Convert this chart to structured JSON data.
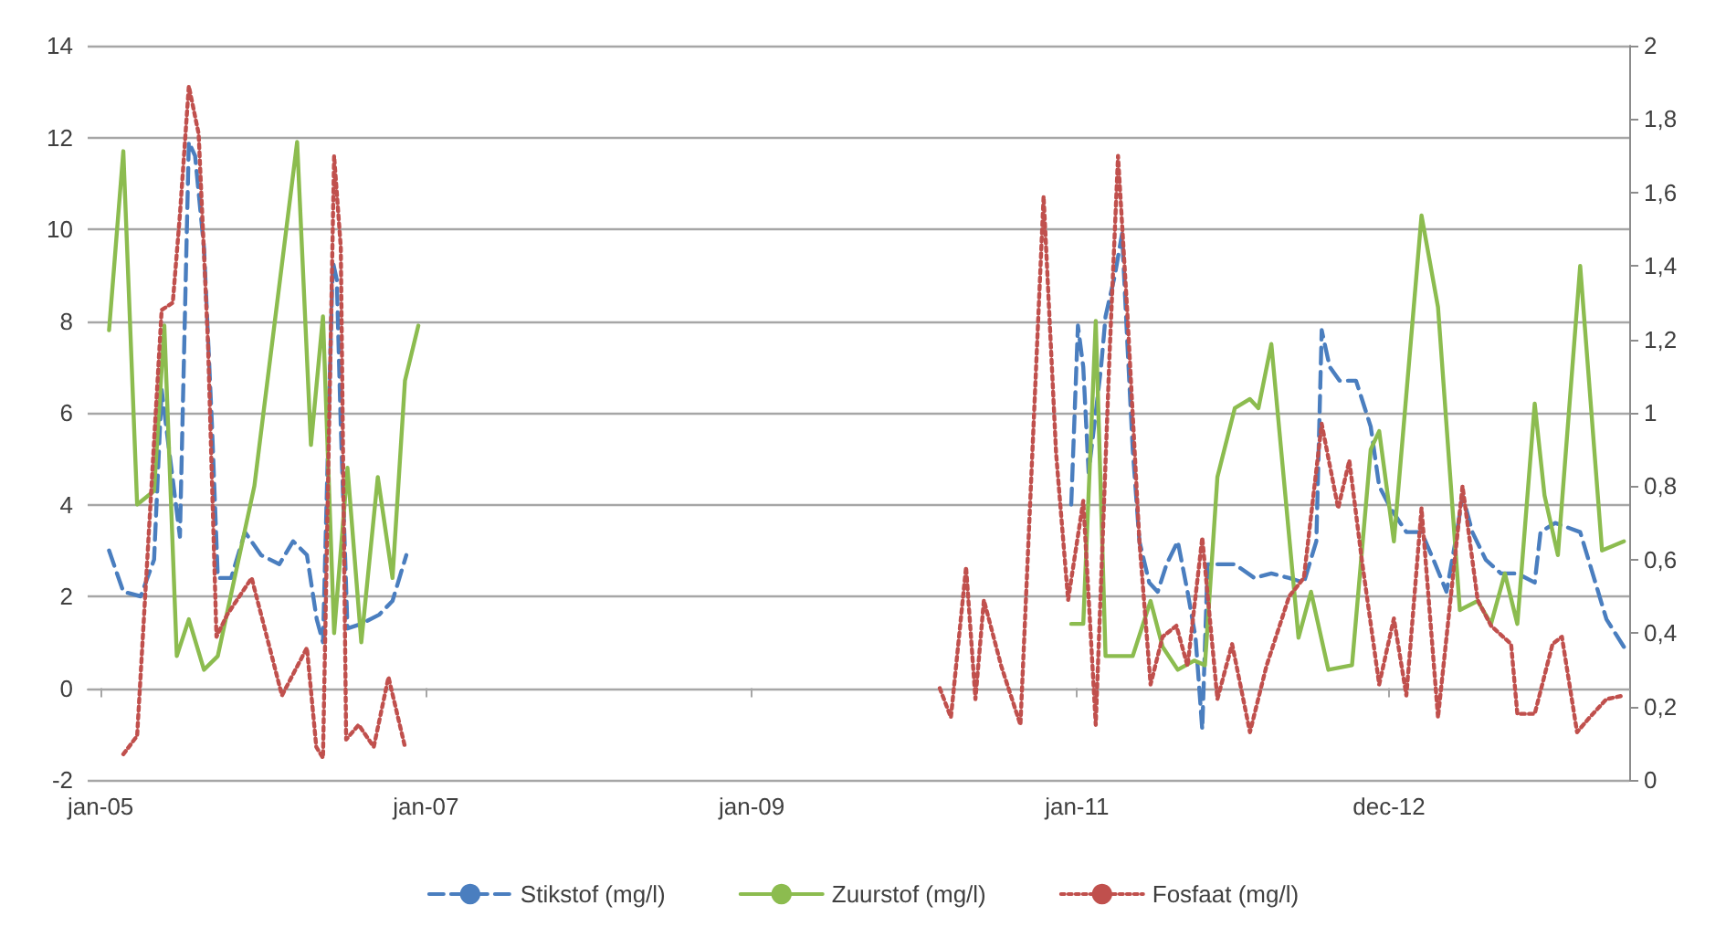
{
  "chart_data": {
    "type": "line",
    "ylim": [
      -2,
      14
    ],
    "yticks": [
      -2,
      0,
      2,
      4,
      6,
      8,
      10,
      12,
      14
    ],
    "y2lim": [
      0,
      2
    ],
    "y2ticks": [
      0,
      {
        "value": 0.2,
        "label": "0,2"
      },
      {
        "value": 0.4,
        "label": "0,4"
      },
      {
        "value": 0.6,
        "label": "0,6"
      },
      {
        "value": 0.8,
        "label": "0,8"
      },
      1,
      {
        "value": 1.2,
        "label": "1,2"
      },
      {
        "value": 1.4,
        "label": "1,4"
      },
      {
        "value": 1.6,
        "label": "1,6"
      },
      {
        "value": 1.8,
        "label": "1,8"
      },
      2
    ],
    "xlim": [
      "2004-12-03",
      "2014-05-24"
    ],
    "xticks": [
      {
        "value": "2005-01-01",
        "label": "jan-05"
      },
      {
        "value": "2007-01-01",
        "label": "jan-07"
      },
      {
        "value": "2009-01-01",
        "label": "jan-09"
      },
      {
        "value": "2011-01-01",
        "label": "jan-11"
      },
      {
        "value": "2012-12-01",
        "label": "dec-12"
      }
    ],
    "grid": "y",
    "legend": "bottom",
    "marker": "none",
    "series": [
      {
        "name": "Stikstof (mg/l)",
        "color": "#4a7ebf",
        "line_style": "dashed",
        "x": [
          "2005-01-20",
          "2005-02-21",
          "2005-04-01",
          "2005-05-01",
          "2005-05-18",
          "2005-06-01",
          "2005-06-28",
          "2005-07-18",
          "2005-08-01",
          "2005-08-21",
          "2005-09-08",
          "2005-09-21",
          "2005-10-21",
          "2005-11-21",
          "2005-12-27",
          "2006-02-06",
          "2006-03-09",
          "2006-04-09",
          "2006-05-01",
          "2006-05-15",
          "2006-06-06",
          "2006-06-15",
          "2006-06-24",
          "2006-07-09",
          "2006-08-09",
          "2006-09-18",
          "2006-10-18",
          "2006-11-18",
          "2008-06-01",
          "2010-12-19",
          "2011-01-03",
          "2011-01-15",
          "2011-01-27",
          "2011-02-12",
          "2011-02-24",
          "2011-03-06",
          "2011-03-27",
          "2011-04-12",
          "2011-04-24",
          "2011-05-06",
          "2011-05-21",
          "2011-06-12",
          "2011-07-01",
          "2011-07-21",
          "2011-08-15",
          "2011-09-06",
          "2011-09-24",
          "2011-10-09",
          "2011-10-21",
          "2011-11-24",
          "2011-12-21",
          "2012-02-03",
          "2012-03-12",
          "2012-04-21",
          "2012-05-24",
          "2012-06-21",
          "2012-07-03",
          "2012-07-21",
          "2012-08-12",
          "2012-09-18",
          "2012-10-21",
          "2012-11-09",
          "2012-12-06",
          "2013-01-09",
          "2013-02-12",
          "2013-03-15",
          "2013-04-09",
          "2013-05-01",
          "2013-05-15",
          "2013-06-06",
          "2013-07-06",
          "2013-08-09",
          "2013-09-15",
          "2013-10-24",
          "2013-11-06",
          "2013-12-09",
          "2014-02-03",
          "2014-03-06",
          "2014-04-03",
          "2014-05-12"
        ],
        "values": [
          3.0,
          2.1,
          2.0,
          2.8,
          6.5,
          5.4,
          3.3,
          11.9,
          11.6,
          9.6,
          5.7,
          2.4,
          2.4,
          3.4,
          2.9,
          2.7,
          3.2,
          2.9,
          1.5,
          1.0,
          9.3,
          8.9,
          5.7,
          1.3,
          1.4,
          1.6,
          1.9,
          2.9,
          null,
          4.0,
          7.9,
          7.0,
          4.7,
          6.0,
          7.0,
          8.1,
          9.0,
          9.9,
          7.5,
          5.2,
          3.2,
          2.3,
          2.1,
          2.7,
          3.2,
          2.1,
          1.1,
          -0.9,
          2.7,
          2.7,
          2.7,
          2.4,
          2.5,
          2.4,
          2.3,
          3.2,
          7.8,
          7.0,
          6.7,
          6.7,
          5.7,
          4.4,
          3.9,
          3.4,
          3.4,
          2.7,
          2.1,
          3.3,
          4.2,
          3.4,
          2.8,
          2.5,
          2.5,
          2.3,
          3.4,
          3.6,
          3.4,
          2.4,
          1.5,
          0.9
        ]
      },
      {
        "name": "Zuurstof (mg/l)",
        "color": "#8cbc4f",
        "line_style": "solid",
        "x": [
          "2005-01-20",
          "2005-02-21",
          "2005-03-24",
          "2005-05-01",
          "2005-05-24",
          "2005-06-21",
          "2005-07-18",
          "2005-08-21",
          "2005-09-21",
          "2005-12-12",
          "2006-03-18",
          "2006-04-18",
          "2006-05-15",
          "2006-06-09",
          "2006-07-09",
          "2006-08-09",
          "2006-09-15",
          "2006-10-18",
          "2006-11-15",
          "2006-12-15",
          "2008-06-01",
          "2010-12-19",
          "2011-01-15",
          "2011-02-12",
          "2011-03-06",
          "2011-05-06",
          "2011-06-15",
          "2011-07-12",
          "2011-08-15",
          "2011-09-21",
          "2011-10-15",
          "2011-11-12",
          "2011-12-21",
          "2012-01-24",
          "2012-02-12",
          "2012-03-12",
          "2012-05-12",
          "2012-06-09",
          "2012-07-18",
          "2012-09-09",
          "2012-10-21",
          "2012-11-09",
          "2012-12-12",
          "2013-02-12",
          "2013-03-21",
          "2013-05-09",
          "2013-06-18",
          "2013-07-18",
          "2013-08-18",
          "2013-09-15",
          "2013-10-24",
          "2013-11-15",
          "2013-12-15",
          "2014-02-03",
          "2014-03-24",
          "2014-05-12"
        ],
        "values": [
          7.8,
          11.7,
          4.0,
          4.3,
          7.9,
          0.7,
          1.5,
          0.4,
          0.7,
          4.4,
          11.9,
          5.3,
          8.1,
          1.2,
          4.8,
          1.0,
          4.6,
          2.4,
          6.7,
          7.9,
          null,
          1.4,
          1.4,
          8.0,
          0.7,
          0.7,
          1.9,
          0.9,
          0.4,
          0.6,
          0.5,
          4.6,
          6.1,
          6.3,
          6.1,
          7.5,
          1.1,
          2.1,
          0.4,
          0.5,
          5.2,
          5.6,
          3.2,
          10.3,
          8.3,
          1.7,
          1.9,
          1.4,
          2.5,
          1.4,
          6.2,
          4.2,
          2.9,
          9.2,
          3.0,
          3.2
        ]
      },
      {
        "name": "Fosfaat (mg/l)",
        "color": "#c0504d",
        "line_style": "dotted",
        "axis": "y2",
        "x": [
          "2005-02-21",
          "2005-03-24",
          "2005-05-18",
          "2005-06-12",
          "2005-06-28",
          "2005-07-18",
          "2005-08-09",
          "2005-08-30",
          "2005-09-18",
          "2005-10-12",
          "2005-12-06",
          "2006-02-12",
          "2006-04-09",
          "2006-04-30",
          "2006-05-15",
          "2006-06-09",
          "2006-06-24",
          "2006-07-06",
          "2006-08-03",
          "2006-09-06",
          "2006-10-09",
          "2006-11-15",
          "2008-06-01",
          "2010-02-27",
          "2010-03-24",
          "2010-04-27",
          "2010-05-18",
          "2010-06-06",
          "2010-07-15",
          "2010-08-27",
          "2010-10-18",
          "2010-11-15",
          "2010-12-12",
          "2011-01-15",
          "2011-02-12",
          "2011-03-15",
          "2011-04-03",
          "2011-04-24",
          "2011-05-21",
          "2011-06-15",
          "2011-07-12",
          "2011-08-12",
          "2011-09-06",
          "2011-10-09",
          "2011-11-12",
          "2011-12-15",
          "2012-01-24",
          "2012-03-01",
          "2012-04-21",
          "2012-05-24",
          "2012-07-03",
          "2012-08-09",
          "2012-09-03",
          "2012-10-01",
          "2012-11-09",
          "2012-12-12",
          "2013-01-09",
          "2013-02-12",
          "2013-03-21",
          "2013-05-15",
          "2013-06-18",
          "2013-07-18",
          "2013-09-01",
          "2013-09-15",
          "2013-10-24",
          "2013-12-03",
          "2013-12-24",
          "2014-01-27",
          "2014-02-24",
          "2014-04-03",
          "2014-05-12"
        ],
        "values": [
          0.07,
          0.12,
          1.28,
          1.3,
          1.54,
          1.89,
          1.76,
          1.19,
          0.39,
          0.45,
          0.55,
          0.23,
          0.36,
          0.09,
          0.06,
          1.7,
          1.45,
          0.11,
          0.15,
          0.09,
          0.28,
          0.09,
          null,
          0.25,
          0.17,
          0.58,
          0.22,
          0.49,
          0.31,
          0.15,
          1.59,
          0.89,
          0.49,
          0.76,
          0.15,
          1.16,
          1.7,
          1.27,
          0.65,
          0.26,
          0.39,
          0.42,
          0.31,
          0.66,
          0.22,
          0.37,
          0.13,
          0.31,
          0.5,
          0.55,
          0.97,
          0.74,
          0.87,
          0.6,
          0.26,
          0.44,
          0.23,
          0.74,
          0.17,
          0.8,
          0.49,
          0.42,
          0.37,
          0.18,
          0.18,
          0.37,
          0.39,
          0.13,
          0.17,
          0.22,
          0.23
        ]
      }
    ]
  }
}
